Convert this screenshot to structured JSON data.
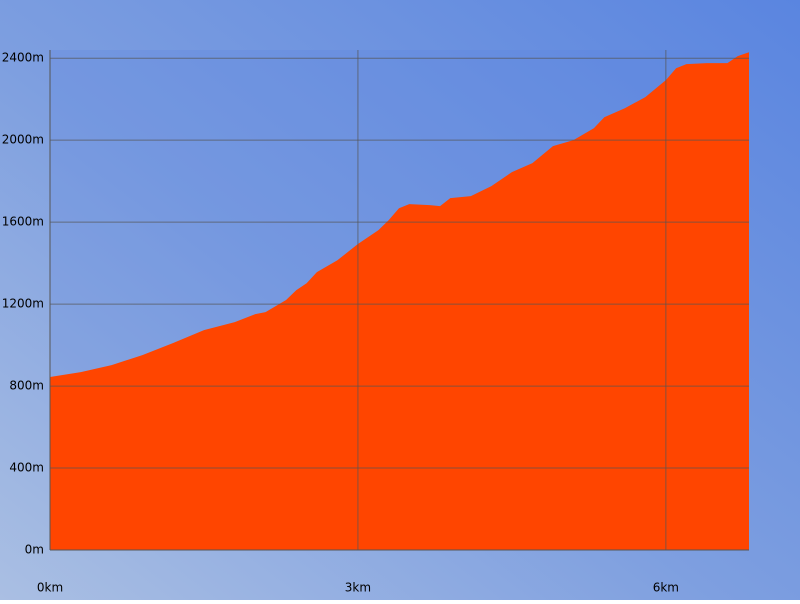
{
  "chart_data": {
    "type": "area",
    "x": [
      0,
      0.3,
      0.6,
      0.9,
      1.2,
      1.5,
      1.8,
      2.0,
      2.1,
      2.3,
      2.4,
      2.5,
      2.6,
      2.8,
      3.0,
      3.2,
      3.3,
      3.4,
      3.5,
      3.7,
      3.8,
      3.9,
      4.1,
      4.3,
      4.5,
      4.7,
      4.9,
      5.1,
      5.3,
      5.4,
      5.6,
      5.8,
      6.0,
      6.1,
      6.2,
      6.4,
      6.6,
      6.7,
      6.81
    ],
    "values": [
      844,
      868,
      902,
      951,
      1010,
      1073,
      1112,
      1151,
      1161,
      1220,
      1268,
      1302,
      1356,
      1414,
      1493,
      1561,
      1610,
      1668,
      1688,
      1683,
      1678,
      1717,
      1727,
      1776,
      1844,
      1888,
      1971,
      2000,
      2059,
      2112,
      2156,
      2210,
      2293,
      2351,
      2371,
      2376,
      2376,
      2410,
      2429
    ],
    "color": "#ff4500",
    "xlim": [
      0,
      6.81
    ],
    "ylim": [
      0,
      2440
    ],
    "xticks": [
      {
        "value": 0,
        "label": "0km"
      },
      {
        "value": 3,
        "label": "3km"
      },
      {
        "value": 6,
        "label": "6km"
      }
    ],
    "yticks": [
      {
        "value": 0,
        "label": "0m"
      },
      {
        "value": 400,
        "label": "400m"
      },
      {
        "value": 800,
        "label": "800m"
      },
      {
        "value": 1200,
        "label": "1200m"
      },
      {
        "value": 1600,
        "label": "1600m"
      },
      {
        "value": 2000,
        "label": "2000m"
      },
      {
        "value": 2400,
        "label": "2400m"
      }
    ],
    "grid": true
  }
}
